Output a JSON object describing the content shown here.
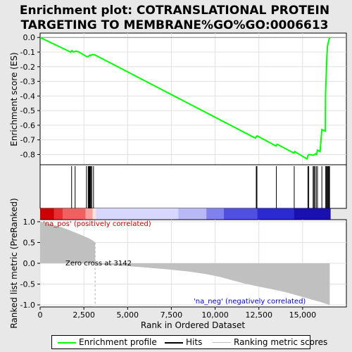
{
  "title_line1": "Enrichment plot: COTRANSLATIONAL PROTEIN",
  "title_line2": "TARGETING TO MEMBRANE%GO%GO:0006613",
  "legend": {
    "enrichment": "Enrichment profile",
    "hits": "Hits",
    "ranking": "Ranking metric scores"
  },
  "colors": {
    "enrichment": "#00ff00",
    "hits": "#000000",
    "ranking": "#c0c0c0",
    "pos_label": "#cc0000",
    "neg_label": "#0000cc"
  },
  "chart_data": [
    {
      "type": "line",
      "ylabel": "Enrichment score (ES)",
      "xlim": [
        0,
        17500
      ],
      "ylim": [
        -0.87,
        0.03
      ],
      "yticks": [
        "0.0",
        "-0.1",
        "-0.2",
        "-0.3",
        "-0.4",
        "-0.5",
        "-0.6",
        "-0.7",
        "-0.8"
      ],
      "grid": true,
      "series": [
        {
          "name": "Enrichment profile",
          "x": [
            0,
            1750,
            1820,
            1900,
            2050,
            2200,
            2650,
            2750,
            2800,
            2850,
            2880,
            2950,
            3050,
            3150,
            12300,
            12380,
            12420,
            13480,
            13550,
            14500,
            14550,
            15250,
            15300,
            15350,
            15600,
            15680,
            15750,
            15800,
            15850,
            16000,
            16050,
            16100,
            16300,
            16310,
            16350,
            16390,
            16420,
            16440,
            16480,
            16520,
            16560
          ],
          "y": [
            0.0,
            -0.1,
            -0.09,
            -0.1,
            -0.093,
            -0.098,
            -0.13,
            -0.13,
            -0.125,
            -0.12,
            -0.125,
            -0.118,
            -0.117,
            -0.12,
            -0.688,
            -0.675,
            -0.673,
            -0.742,
            -0.73,
            -0.79,
            -0.78,
            -0.83,
            -0.81,
            -0.8,
            -0.805,
            -0.8,
            -0.795,
            -0.8,
            -0.77,
            -0.78,
            -0.7,
            -0.63,
            -0.64,
            -0.39,
            -0.26,
            -0.12,
            -0.06,
            -0.05,
            -0.03,
            -0.01,
            0.0
          ]
        }
      ]
    },
    {
      "type": "scatter",
      "label": "Hits",
      "hit_ranks": [
        1800,
        2000,
        2650,
        2750,
        2780,
        2810,
        2840,
        2870,
        2900,
        2950,
        3050,
        12350,
        12390,
        13500,
        14520,
        15300,
        15350,
        15600,
        15650,
        15700,
        15780,
        15850,
        16100,
        16320,
        16360,
        16400,
        16440,
        16480,
        16510,
        16540
      ]
    },
    {
      "type": "area",
      "xlabel": "Rank in Ordered Dataset",
      "ylabel": "Ranked list metric (PreRanked)",
      "xlim": [
        0,
        17500
      ],
      "ylim": [
        -1.05,
        1.05
      ],
      "xticks": [
        "0",
        "2,500",
        "5,000",
        "7,500",
        "10,000",
        "12,500",
        "15,000"
      ],
      "yticks": [
        "1.0",
        "0.5",
        "0.0",
        "-0.5",
        "-1.0"
      ],
      "grid": true,
      "series": [
        {
          "name": "Ranking metric scores",
          "x": [
            0,
            200,
            500,
            800,
            1200,
            1600,
            2000,
            2400,
            2800,
            3000,
            3142,
            3150,
            4500,
            6000,
            7400,
            8500,
            9500,
            10300,
            11000,
            11800,
            12500,
            13200,
            13900,
            14500,
            15000,
            15500,
            16000,
            16300,
            16550
          ],
          "y": [
            1.0,
            0.98,
            0.95,
            0.92,
            0.87,
            0.81,
            0.74,
            0.67,
            0.6,
            0.55,
            0.5,
            -0.02,
            -0.05,
            -0.1,
            -0.15,
            -0.2,
            -0.26,
            -0.33,
            -0.41,
            -0.5,
            -0.56,
            -0.62,
            -0.68,
            -0.75,
            -0.81,
            -0.87,
            -0.93,
            -0.97,
            -1.0
          ]
        }
      ],
      "annotations": {
        "pos": "'na_pos' (positively correlated)",
        "neg": "'na_neg' (negatively correlated)",
        "zero_cross": "Zero cross at 3142"
      }
    }
  ]
}
